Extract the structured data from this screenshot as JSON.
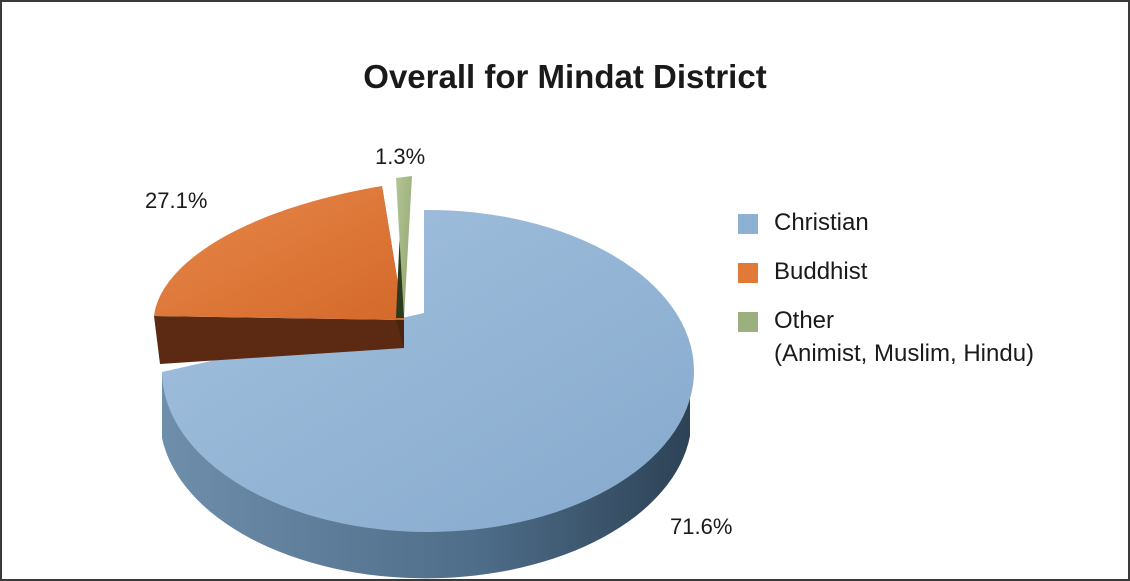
{
  "chart_data": {
    "type": "pie",
    "title": "Overall for Mindat District",
    "slices": [
      {
        "label": "Christian",
        "value": 71.6,
        "value_label": "71.6%",
        "color": "#8cb1d3"
      },
      {
        "label": "Buddhist",
        "value": 27.1,
        "value_label": "27.1%",
        "color": "#e07a36"
      },
      {
        "label": "Other",
        "sublabel": "(Animist, Muslim, Hindu)",
        "value": 1.3,
        "value_label": "1.3%",
        "color": "#9cb07e"
      }
    ],
    "legend_position": "right",
    "style": "3d-exploded"
  }
}
